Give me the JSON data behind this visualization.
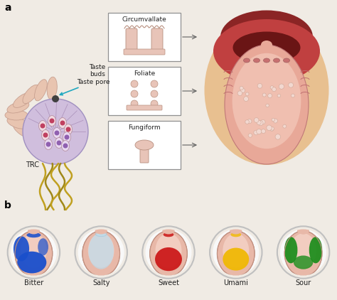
{
  "bg_color": "#f0ebe4",
  "taste_labels": [
    "Bitter",
    "Salty",
    "Sweet",
    "Umami",
    "Sour"
  ],
  "taste_colors": [
    "#1a4fcc",
    "#b8ddf0",
    "#cc1a1a",
    "#f0b800",
    "#1a8c1a"
  ],
  "taste_colors_dark": [
    "#1a3fa0",
    "#7bbcd6",
    "#a01a1a",
    "#cc9900",
    "#157a15"
  ],
  "label_a": "a",
  "label_b": "b",
  "text_taste_pore": "Taste pore",
  "text_trc": "TRC",
  "text_circumvallate": "Circumvallate",
  "text_foliate": "Foliate",
  "text_fungiform": "Fungiform",
  "text_taste_buds": "Taste\nbuds",
  "tongue_base": "#e8a898",
  "tongue_mid": "#f0bfb0",
  "tongue_light": "#f5d0c5",
  "mouth_dark": "#8b2525",
  "mouth_mid": "#c04040",
  "skin_color": "#e8c090"
}
